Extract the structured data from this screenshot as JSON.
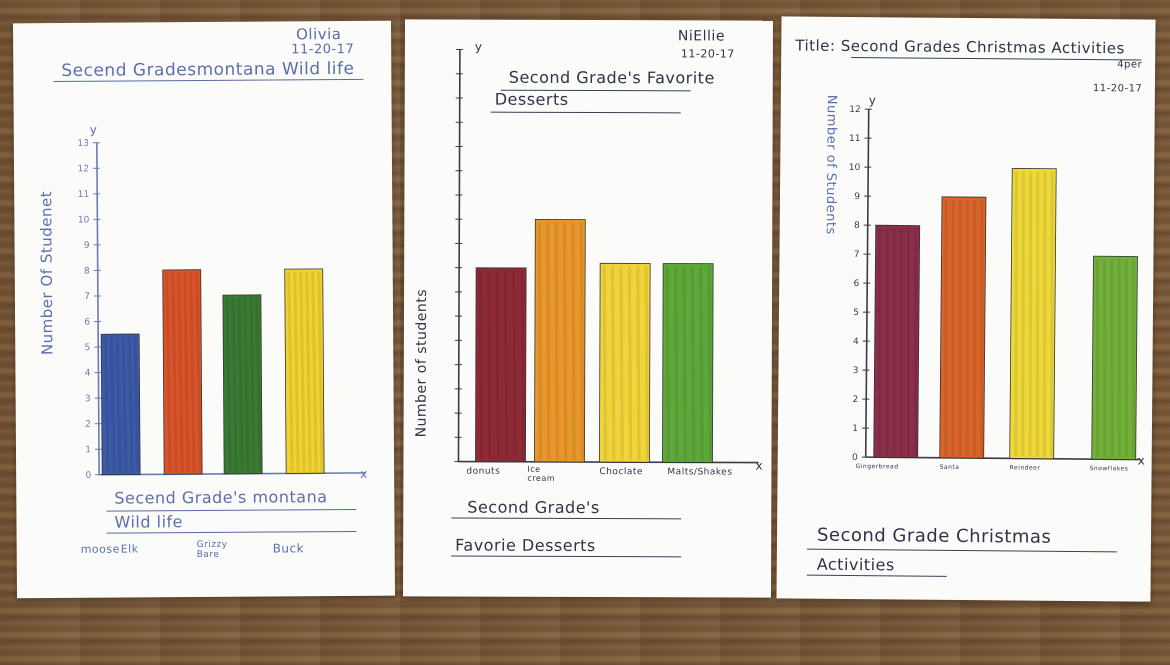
{
  "posters": [
    {
      "name": "Olivia",
      "date": "11-20-17",
      "title": "Secend Gradesmontana Wild life",
      "ylabel": "Number Of Studenet",
      "axis_y": "y",
      "axis_x": "x",
      "bottom_title_line1": "Secend Grade's montana",
      "bottom_title_line2": "Wild life",
      "category_labels": [
        "moose",
        "Elk",
        "Grizzy Bare",
        "Buck"
      ],
      "colors": [
        "#3b5aa8",
        "#d9542a",
        "#3a7a33",
        "#f1d230"
      ]
    },
    {
      "name": "NiEllie",
      "date": "11-20-17",
      "title_line1": "Second Grade's Favorite",
      "title_line2": "Desserts",
      "ylabel": "Number of students",
      "axis_y": "y",
      "axis_x": "x",
      "bottom_title_line1": "Second Grade's",
      "bottom_title_line2": "Favorie   Desserts",
      "category_labels": [
        "donuts",
        "Ice cream",
        "Choclate",
        "Malts/Shakes"
      ],
      "colors": [
        "#8e2a36",
        "#e8962a",
        "#f0d43a",
        "#5ea83a"
      ]
    },
    {
      "title": "Title: Second Grades Christmas Activities",
      "side_note": "4per",
      "date": "11-20-17",
      "ylabel": "Number of Students",
      "axis_y": "y",
      "axis_x": "x",
      "bottom_title_line1": "Second Grade Christmas",
      "bottom_title_line2": "Activities",
      "category_labels": [
        "Gingerbread",
        "Santa",
        "Reindeer",
        "Snowflakes"
      ],
      "colors": [
        "#8a2e4a",
        "#d8642a",
        "#efd83a",
        "#72b03a"
      ]
    }
  ],
  "chart_data": [
    {
      "type": "bar",
      "title": "Secend Gradesmontana Wild life",
      "xlabel": "Secend Grade's montana Wild life",
      "ylabel": "Number Of Studenet",
      "categories": [
        "moose",
        "Elk",
        "Grizzy Bare",
        "Buck"
      ],
      "values": [
        5.5,
        8,
        7,
        8
      ],
      "ylim": [
        0,
        13
      ],
      "yticks": [
        "0",
        "1",
        "2",
        "3",
        "4",
        "5",
        "6",
        "7",
        "8",
        "9",
        "10",
        "11",
        "12",
        "13"
      ]
    },
    {
      "type": "bar",
      "title": "Second Grade's Favorite Desserts",
      "xlabel": "Second Grade's Favorie Desserts",
      "ylabel": "Number of students",
      "categories": [
        "donuts",
        "Ice cream",
        "Choclate",
        "Malts/Shakes"
      ],
      "values": [
        8,
        10,
        8.2,
        8.2
      ],
      "ylim": [
        0,
        17
      ]
    },
    {
      "type": "bar",
      "title": "Second Grades Christmas Activities",
      "xlabel": "Second Grade Christmas Activities",
      "ylabel": "Number of Students",
      "categories": [
        "Gingerbread",
        "Santa",
        "Reindeer",
        "Snowflakes"
      ],
      "values": [
        8,
        9,
        10,
        7
      ],
      "ylim": [
        0,
        12
      ],
      "yticks": [
        "0",
        "1",
        "2",
        "3",
        "4",
        "5",
        "6",
        "7",
        "8",
        "9",
        "10",
        "11",
        "12"
      ]
    }
  ]
}
